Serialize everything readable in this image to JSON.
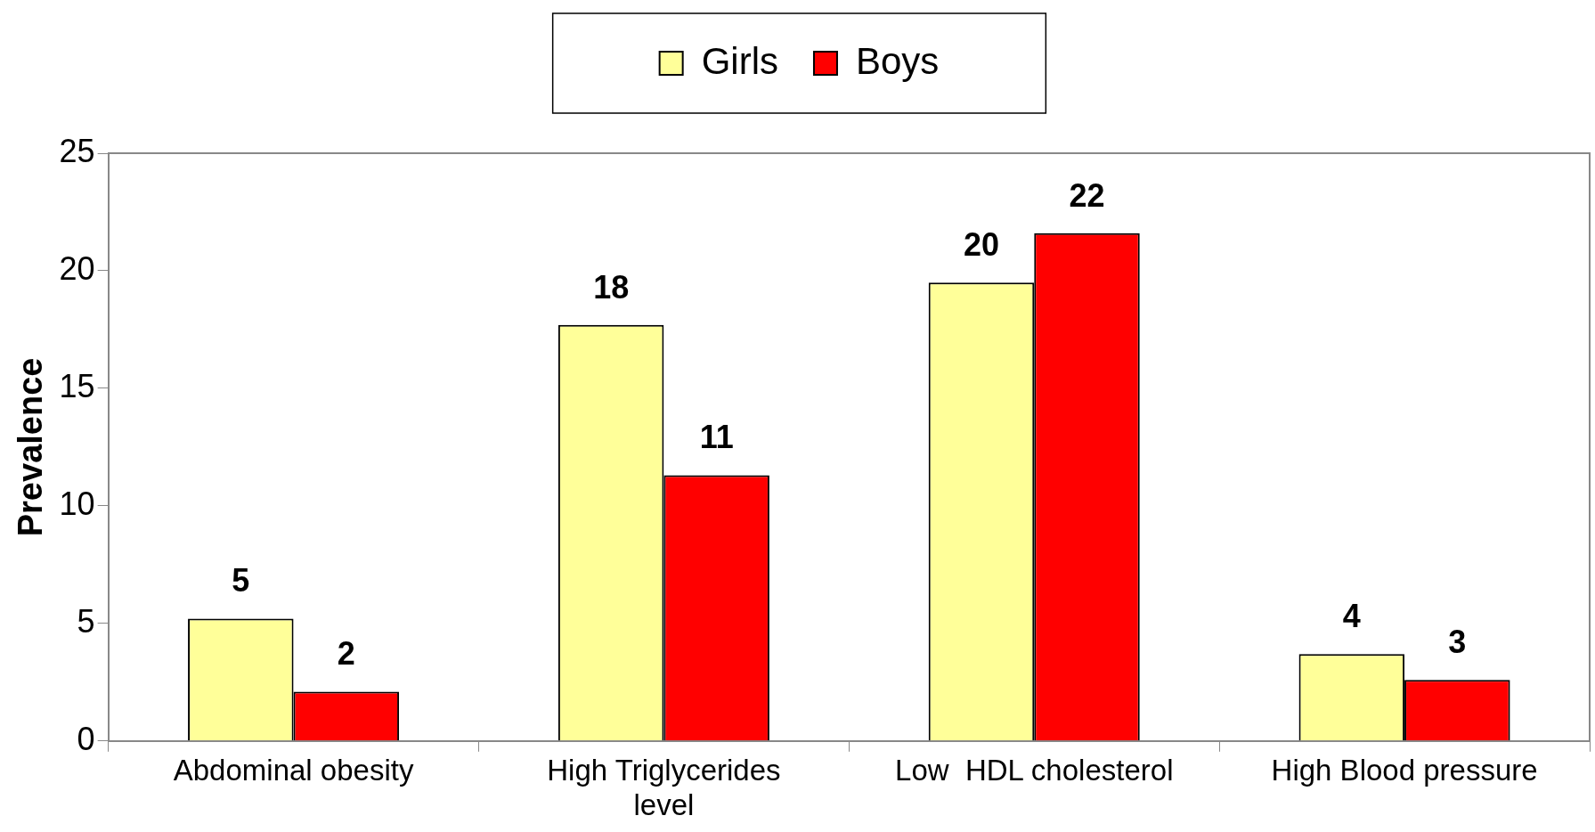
{
  "chart_data": {
    "type": "bar",
    "ylabel": "Prevalence",
    "categories": [
      "Abdominal obesity",
      "High Triglycerides level",
      "Low  HDL cholesterol",
      "High Blood pressure"
    ],
    "series": [
      {
        "name": "Girls",
        "color": "#ffff99",
        "values": [
          5.2,
          17.7,
          19.5,
          3.7
        ],
        "value_labels": [
          "5",
          "18",
          "20",
          "4"
        ]
      },
      {
        "name": "Boys",
        "color": "#ff0000",
        "values": [
          2.1,
          11.3,
          21.6,
          2.6
        ],
        "value_labels": [
          "2",
          "11",
          "22",
          "3"
        ]
      }
    ],
    "ylim": [
      0,
      25
    ],
    "yticks": [
      0,
      5,
      10,
      15,
      20,
      25
    ],
    "grid": false,
    "legend": "top"
  }
}
